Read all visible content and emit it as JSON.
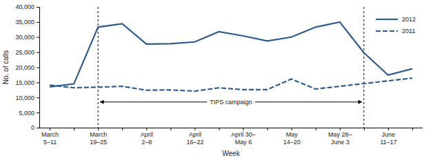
{
  "chart_data": {
    "type": "line",
    "x_label": "Week",
    "y_label": "No. of calls",
    "categories": [
      "March\n5–11",
      null,
      "March\n19–25",
      null,
      "April\n2–8",
      null,
      "April\n16–22",
      null,
      "April 30–\nMay 6",
      null,
      "May\n14–20",
      null,
      "May 28–\nJune 3",
      null,
      "June\n11–17",
      null
    ],
    "series": [
      {
        "name": "2012",
        "color": "#2e5b8c",
        "line_style": "solid",
        "values": [
          13500,
          14500,
          33300,
          34400,
          27700,
          27800,
          28400,
          31800,
          30400,
          28700,
          30000,
          33300,
          35000,
          24800,
          17400,
          19500
        ]
      },
      {
        "name": "2011",
        "color": "#2e5b8c",
        "line_style": "dashed",
        "values": [
          14100,
          13200,
          13400,
          13700,
          12400,
          12500,
          12100,
          13200,
          12600,
          12600,
          16100,
          12800,
          13700,
          14600,
          15500,
          16400
        ]
      }
    ],
    "ylim": [
      0,
      40000
    ],
    "yticks": [
      0,
      {
        "value": 5000,
        "label": "5,000"
      },
      {
        "value": 10000,
        "label": "10,000"
      },
      {
        "value": 15000,
        "label": "15,000"
      },
      {
        "value": 20000,
        "label": "20,000"
      },
      {
        "value": 25000,
        "label": "25,000"
      },
      {
        "value": 30000,
        "label": "30,000"
      },
      {
        "value": 35000,
        "label": "35,000"
      },
      {
        "value": 40000,
        "label": "40,000"
      }
    ],
    "grid": false,
    "legend": "upper right",
    "annotations": [
      {
        "text": "TIPS campaign",
        "x_start": 2,
        "x_end": 13,
        "y": 8500
      }
    ]
  }
}
